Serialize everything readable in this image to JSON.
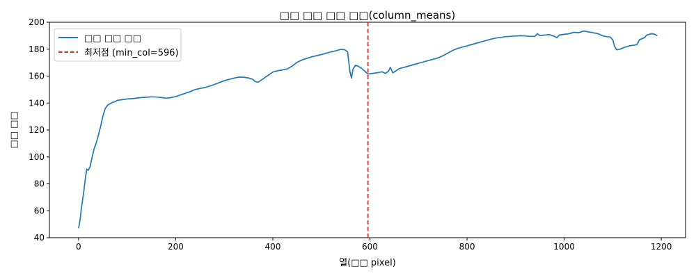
{
  "chart_data": {
    "type": "line",
    "title": "□□ □□ □□ □□(column_means)",
    "xlabel": "열(□□ pixel)",
    "ylabel": "□□ □□",
    "xlim": [
      -60,
      1250
    ],
    "ylim": [
      40,
      200
    ],
    "x_ticks": [
      0,
      200,
      400,
      600,
      800,
      1000,
      1200
    ],
    "y_ticks": [
      40,
      60,
      80,
      100,
      120,
      140,
      160,
      180,
      200
    ],
    "grid": false,
    "legend_position": "top-left",
    "series": [
      {
        "name": "□□ □□ □□",
        "color": "#1f77b4",
        "points": [
          [
            0,
            47
          ],
          [
            3,
            53
          ],
          [
            6,
            62
          ],
          [
            10,
            72
          ],
          [
            14,
            84
          ],
          [
            17,
            91
          ],
          [
            20,
            90
          ],
          [
            24,
            93
          ],
          [
            28,
            100
          ],
          [
            32,
            106
          ],
          [
            36,
            110
          ],
          [
            40,
            115
          ],
          [
            45,
            122
          ],
          [
            50,
            130
          ],
          [
            55,
            136
          ],
          [
            60,
            138.5
          ],
          [
            65,
            139.5
          ],
          [
            70,
            140.5
          ],
          [
            75,
            141
          ],
          [
            80,
            142
          ],
          [
            90,
            142.5
          ],
          [
            100,
            143
          ],
          [
            110,
            143.3
          ],
          [
            120,
            143.7
          ],
          [
            130,
            144.1
          ],
          [
            140,
            144.3
          ],
          [
            150,
            144.6
          ],
          [
            160,
            144.4
          ],
          [
            170,
            144.2
          ],
          [
            180,
            143.6
          ],
          [
            190,
            144
          ],
          [
            200,
            144.8
          ],
          [
            210,
            146
          ],
          [
            220,
            147.2
          ],
          [
            230,
            148.5
          ],
          [
            240,
            150
          ],
          [
            250,
            150.8
          ],
          [
            260,
            151.5
          ],
          [
            270,
            152.6
          ],
          [
            280,
            153.8
          ],
          [
            290,
            155.2
          ],
          [
            300,
            156.6
          ],
          [
            310,
            157.6
          ],
          [
            320,
            158.5
          ],
          [
            330,
            159.3
          ],
          [
            340,
            159.2
          ],
          [
            350,
            158.6
          ],
          [
            358,
            157.8
          ],
          [
            364,
            156
          ],
          [
            370,
            155.5
          ],
          [
            380,
            158
          ],
          [
            390,
            160.5
          ],
          [
            400,
            163
          ],
          [
            410,
            164
          ],
          [
            420,
            164.6
          ],
          [
            430,
            165.3
          ],
          [
            440,
            167.5
          ],
          [
            450,
            170.2
          ],
          [
            460,
            172
          ],
          [
            470,
            173.2
          ],
          [
            480,
            174.3
          ],
          [
            490,
            175.2
          ],
          [
            500,
            176
          ],
          [
            510,
            177
          ],
          [
            520,
            178
          ],
          [
            530,
            178.8
          ],
          [
            540,
            179.8
          ],
          [
            548,
            179.6
          ],
          [
            554,
            178
          ],
          [
            556,
            172
          ],
          [
            559,
            163
          ],
          [
            562,
            158.5
          ],
          [
            565,
            165
          ],
          [
            570,
            168
          ],
          [
            575,
            167.5
          ],
          [
            582,
            166
          ],
          [
            590,
            163.5
          ],
          [
            596,
            161.5
          ],
          [
            605,
            162
          ],
          [
            615,
            162.5
          ],
          [
            625,
            163.2
          ],
          [
            632,
            162
          ],
          [
            638,
            163.5
          ],
          [
            642,
            166.5
          ],
          [
            647,
            162.5
          ],
          [
            652,
            163.5
          ],
          [
            660,
            165.5
          ],
          [
            670,
            166.5
          ],
          [
            680,
            167.5
          ],
          [
            690,
            168.5
          ],
          [
            700,
            169.5
          ],
          [
            710,
            170.5
          ],
          [
            720,
            171.5
          ],
          [
            730,
            172.5
          ],
          [
            740,
            173.5
          ],
          [
            750,
            175
          ],
          [
            760,
            177
          ],
          [
            770,
            179
          ],
          [
            780,
            180.5
          ],
          [
            790,
            181.5
          ],
          [
            800,
            182.5
          ],
          [
            810,
            183.5
          ],
          [
            820,
            184.5
          ],
          [
            830,
            185.5
          ],
          [
            840,
            186.5
          ],
          [
            850,
            187.5
          ],
          [
            860,
            188.3
          ],
          [
            870,
            188.8
          ],
          [
            880,
            189.3
          ],
          [
            890,
            189.5
          ],
          [
            900,
            189.8
          ],
          [
            910,
            190
          ],
          [
            920,
            189.8
          ],
          [
            930,
            189.5
          ],
          [
            940,
            189.5
          ],
          [
            945,
            191.5
          ],
          [
            950,
            190
          ],
          [
            960,
            190.5
          ],
          [
            970,
            190.8
          ],
          [
            980,
            189.5
          ],
          [
            985,
            188.5
          ],
          [
            990,
            190.5
          ],
          [
            1000,
            191
          ],
          [
            1010,
            191.5
          ],
          [
            1020,
            192.5
          ],
          [
            1030,
            192.2
          ],
          [
            1040,
            193.5
          ],
          [
            1045,
            193.2
          ],
          [
            1055,
            192.5
          ],
          [
            1070,
            191.5
          ],
          [
            1080,
            189.8
          ],
          [
            1088,
            189.3
          ],
          [
            1095,
            189
          ],
          [
            1100,
            187
          ],
          [
            1104,
            182
          ],
          [
            1108,
            179.5
          ],
          [
            1115,
            180
          ],
          [
            1125,
            181.5
          ],
          [
            1135,
            182.5
          ],
          [
            1145,
            183
          ],
          [
            1150,
            183.5
          ],
          [
            1155,
            187
          ],
          [
            1165,
            188.5
          ],
          [
            1170,
            190.5
          ],
          [
            1180,
            191.5
          ],
          [
            1186,
            191.2
          ],
          [
            1192,
            190
          ]
        ]
      }
    ],
    "annotations": [
      {
        "type": "vline",
        "x": 596,
        "color": "#d62728",
        "style": "dashed",
        "label": "최저점 (min_col=596)"
      }
    ]
  }
}
